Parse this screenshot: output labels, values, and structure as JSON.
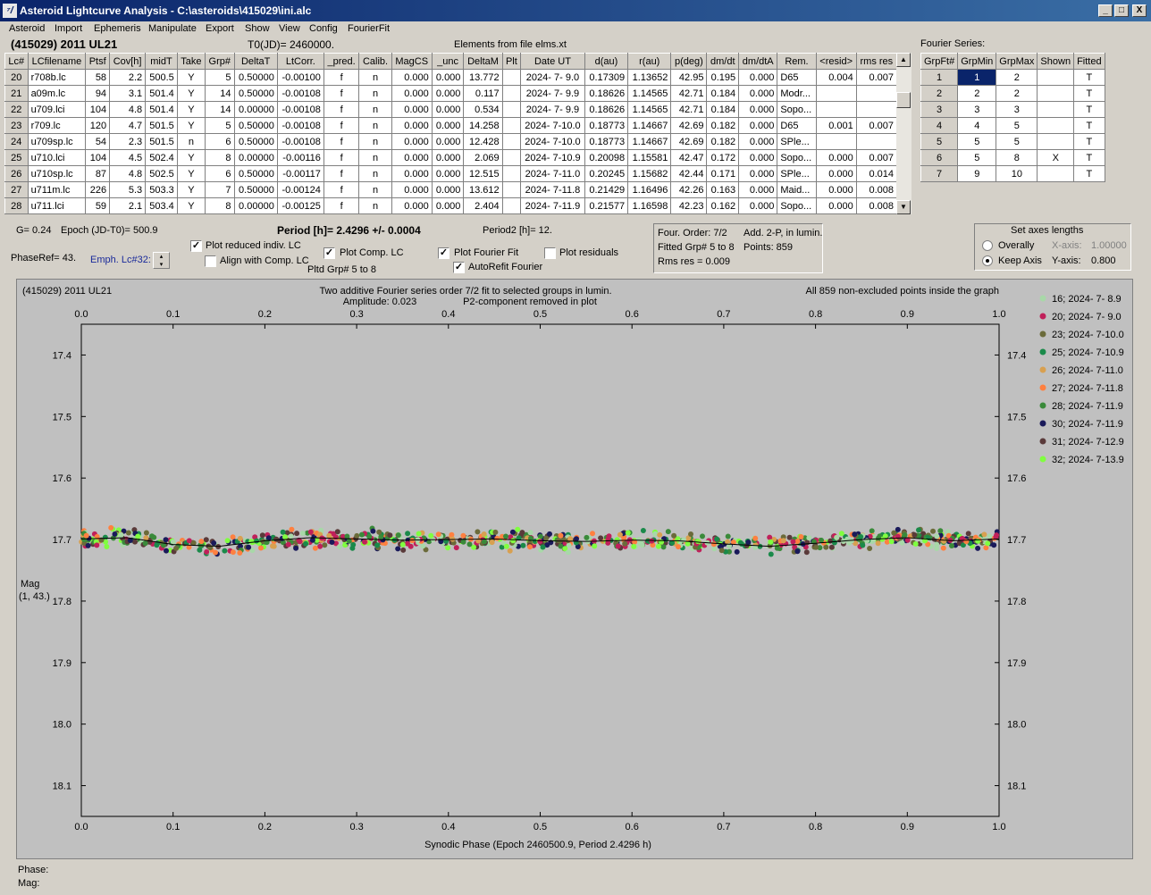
{
  "window": {
    "title": "Asteroid Lightcurve Analysis - C:\\asteroids\\415029\\ini.alc",
    "min": "_",
    "max": "□",
    "close": "X"
  },
  "menu": [
    "Asteroid",
    "Import",
    "Ephemeris",
    "Manipulate",
    "Export",
    "Show",
    "View",
    "Config",
    "FourierFit"
  ],
  "header": {
    "object": "(415029) 2011 UL21",
    "t0": "T0(JD)= 2460000.",
    "elements": "Elements from file elms.xt",
    "fourier_label": "Fourier Series:"
  },
  "lc_table": {
    "columns": [
      "Lc#",
      "LCfilename",
      "Ptsf",
      "Cov[h]",
      "midT",
      "Take",
      "Grp#",
      "DeltaT",
      "LtCorr.",
      "_pred.",
      "Calib.",
      "MagCS",
      "_unc",
      "DeltaM",
      "Plt",
      "Date UT",
      "d(au)",
      "r(au)",
      "p(deg)",
      "dm/dt",
      "dm/dtA",
      "Rem.",
      "<resid>",
      "rms res"
    ],
    "rows": [
      [
        "20",
        "r708b.lc",
        "58",
        "2.2",
        "500.5",
        "Y",
        "5",
        "0.50000",
        "-0.00100",
        "f",
        "n",
        "0.000",
        "0.000",
        "13.772",
        "",
        "2024- 7- 9.0",
        "0.17309",
        "1.13652",
        "42.95",
        "0.195",
        "0.000",
        "D65",
        "0.004",
        "0.007"
      ],
      [
        "21",
        "a09m.lc",
        "94",
        "3.1",
        "501.4",
        "Y",
        "14",
        "0.50000",
        "-0.00108",
        "f",
        "n",
        "0.000",
        "0.000",
        "0.117",
        "",
        "2024- 7- 9.9",
        "0.18626",
        "1.14565",
        "42.71",
        "0.184",
        "0.000",
        "Modr...",
        "",
        ""
      ],
      [
        "22",
        "u709.lci",
        "104",
        "4.8",
        "501.4",
        "Y",
        "14",
        "0.00000",
        "-0.00108",
        "f",
        "n",
        "0.000",
        "0.000",
        "0.534",
        "",
        "2024- 7- 9.9",
        "0.18626",
        "1.14565",
        "42.71",
        "0.184",
        "0.000",
        "Sopo...",
        "",
        ""
      ],
      [
        "23",
        "r709.lc",
        "120",
        "4.7",
        "501.5",
        "Y",
        "5",
        "0.50000",
        "-0.00108",
        "f",
        "n",
        "0.000",
        "0.000",
        "14.258",
        "",
        "2024- 7-10.0",
        "0.18773",
        "1.14667",
        "42.69",
        "0.182",
        "0.000",
        "D65",
        "0.001",
        "0.007"
      ],
      [
        "24",
        "u709sp.lc",
        "54",
        "2.3",
        "501.5",
        "n",
        "6",
        "0.50000",
        "-0.00108",
        "f",
        "n",
        "0.000",
        "0.000",
        "12.428",
        "",
        "2024- 7-10.0",
        "0.18773",
        "1.14667",
        "42.69",
        "0.182",
        "0.000",
        "SPle...",
        "",
        ""
      ],
      [
        "25",
        "u710.lci",
        "104",
        "4.5",
        "502.4",
        "Y",
        "8",
        "0.00000",
        "-0.00116",
        "f",
        "n",
        "0.000",
        "0.000",
        "2.069",
        "",
        "2024- 7-10.9",
        "0.20098",
        "1.15581",
        "42.47",
        "0.172",
        "0.000",
        "Sopo...",
        "0.000",
        "0.007"
      ],
      [
        "26",
        "u710sp.lc",
        "87",
        "4.8",
        "502.5",
        "Y",
        "6",
        "0.50000",
        "-0.00117",
        "f",
        "n",
        "0.000",
        "0.000",
        "12.515",
        "",
        "2024- 7-11.0",
        "0.20245",
        "1.15682",
        "42.44",
        "0.171",
        "0.000",
        "SPle...",
        "0.000",
        "0.014"
      ],
      [
        "27",
        "u711m.lc",
        "226",
        "5.3",
        "503.3",
        "Y",
        "7",
        "0.50000",
        "-0.00124",
        "f",
        "n",
        "0.000",
        "0.000",
        "13.612",
        "",
        "2024- 7-11.8",
        "0.21429",
        "1.16496",
        "42.26",
        "0.163",
        "0.000",
        "Maid...",
        "0.000",
        "0.008"
      ],
      [
        "28",
        "u711.lci",
        "59",
        "2.1",
        "503.4",
        "Y",
        "8",
        "0.00000",
        "-0.00125",
        "f",
        "n",
        "0.000",
        "0.000",
        "2.404",
        "",
        "2024- 7-11.9",
        "0.21577",
        "1.16598",
        "42.23",
        "0.162",
        "0.000",
        "Sopo...",
        "0.000",
        "0.008"
      ]
    ]
  },
  "fourier_table": {
    "columns": [
      "GrpFt#",
      "GrpMin",
      "GrpMax",
      "Shown",
      "Fitted"
    ],
    "rows": [
      [
        "1",
        "1",
        "2",
        "",
        "T"
      ],
      [
        "2",
        "2",
        "2",
        "",
        "T"
      ],
      [
        "3",
        "3",
        "3",
        "",
        "T"
      ],
      [
        "4",
        "4",
        "5",
        "",
        "T"
      ],
      [
        "5",
        "5",
        "5",
        "",
        "T"
      ],
      [
        "6",
        "5",
        "8",
        "X",
        "T"
      ],
      [
        "7",
        "9",
        "10",
        "",
        "T"
      ]
    ]
  },
  "controls": {
    "g": "G= 0.24",
    "epoch": "Epoch (JD-T0)= 500.9",
    "period": "Period [h]= 2.4296 +/- 0.0004",
    "period2": "Period2 [h]= 12.",
    "phaseref": "PhaseRef= 43.",
    "emph": "Emph. Lc#32:",
    "cb_plot_reduced": "Plot reduced indiv. LC",
    "cb_align": "Align with Comp. LC",
    "cb_plot_comp": "Plot Comp. LC",
    "cb_plot_fourier": "Plot Fourier Fit",
    "cb_autorefit": "AutoRefit Fourier",
    "cb_plot_residuals": "Plot residuals",
    "pltd_grp": "Pltd Grp#  5  to   8"
  },
  "fitinfo": {
    "order": "Four. Order:  7/2",
    "add": "Add. 2-P, in lumin.",
    "fitted": "Fitted Grp# 5 to 8",
    "points": "Points: 859",
    "rms": "Rms res      = 0.009"
  },
  "axes_box": {
    "title": "Set axes lengths",
    "overally": "Overally",
    "keep": "Keep Axis",
    "xaxis_label": "X-axis:",
    "xaxis_val": "1.00000",
    "yaxis_label": "Y-axis:",
    "yaxis_val": "0.800"
  },
  "plot": {
    "object": "(415029) 2011 UL21",
    "line1": "Two additive Fourier series order 7/2 fit to selected groups in lumin.",
    "line2": "Amplitude: 0.023",
    "line3": "P2-component removed in plot",
    "allpts": "All 859 non-excluded points inside the graph",
    "ylabel1": "Mag",
    "ylabel2": "(1, 43.)",
    "xlabel": "Synodic Phase (Epoch 2460500.9, Period 2.4296 h)"
  },
  "status": {
    "phase": "Phase:",
    "mag": "Mag:"
  },
  "chart_data": {
    "type": "scatter",
    "xlabel": "Synodic Phase (Epoch 2460500.9, Period 2.4296 h)",
    "ylabel": "Mag",
    "xlim": [
      0,
      1
    ],
    "ylim": [
      18.15,
      17.35
    ],
    "xticks": [
      "0.0",
      "0.1",
      "0.2",
      "0.3",
      "0.4",
      "0.5",
      "0.6",
      "0.7",
      "0.8",
      "0.9",
      "1.0"
    ],
    "yticks": [
      "17.4",
      "17.5",
      "17.6",
      "17.7",
      "17.8",
      "17.9",
      "18.0",
      "18.1"
    ],
    "series": [
      {
        "name": "16; 2024- 7- 8.9",
        "color": "#a8d8a8"
      },
      {
        "name": "20; 2024- 7- 9.0",
        "color": "#c0205a"
      },
      {
        "name": "23; 2024- 7-10.0",
        "color": "#6b6b3a"
      },
      {
        "name": "25; 2024- 7-10.9",
        "color": "#1a8a4a"
      },
      {
        "name": "26; 2024- 7-11.0",
        "color": "#d8a050"
      },
      {
        "name": "27; 2024- 7-11.8",
        "color": "#ff8040"
      },
      {
        "name": "28; 2024- 7-11.9",
        "color": "#3a8a3a"
      },
      {
        "name": "30; 2024- 7-11.9",
        "color": "#1a1a5a"
      },
      {
        "name": "31; 2024- 7-12.9",
        "color": "#5a3a3a"
      },
      {
        "name": "32; 2024- 7-13.9",
        "color": "#80ff40"
      }
    ],
    "fit_curve": {
      "phase": [
        0.0,
        0.05,
        0.1,
        0.15,
        0.2,
        0.25,
        0.3,
        0.35,
        0.4,
        0.45,
        0.5,
        0.55,
        0.6,
        0.65,
        0.7,
        0.75,
        0.8,
        0.85,
        0.9,
        0.95,
        1.0
      ],
      "mag": [
        17.699,
        17.697,
        17.708,
        17.711,
        17.702,
        17.697,
        17.699,
        17.701,
        17.7,
        17.699,
        17.702,
        17.703,
        17.701,
        17.702,
        17.707,
        17.711,
        17.706,
        17.7,
        17.697,
        17.702,
        17.699
      ]
    }
  }
}
